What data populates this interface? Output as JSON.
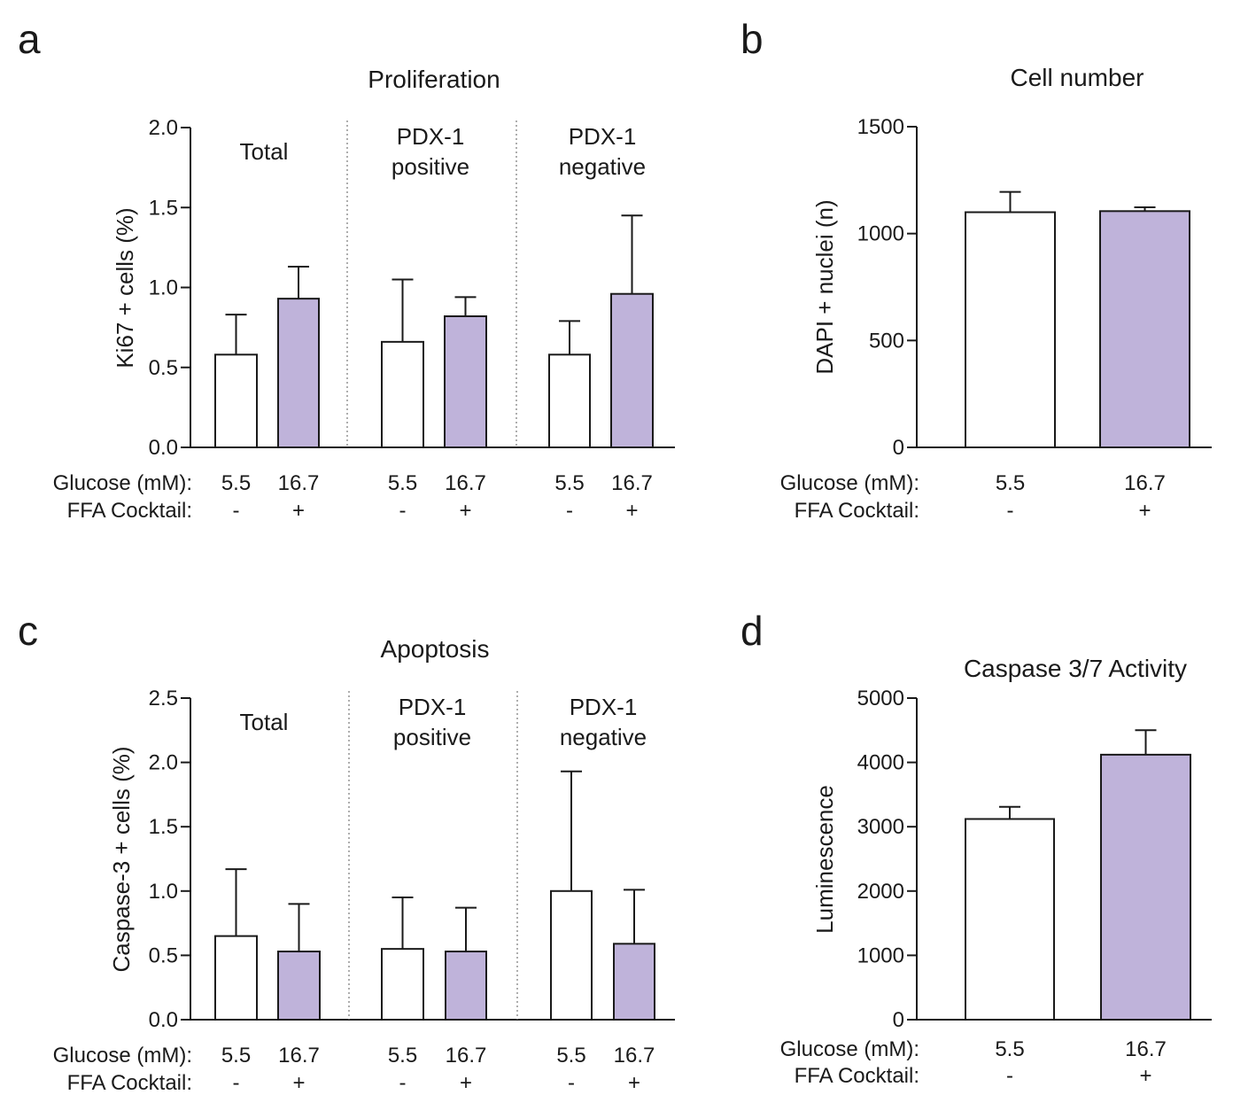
{
  "chart_data": [
    {
      "panel": "a",
      "type": "bar",
      "title": "Proliferation",
      "ylabel": "Ki67 + cells (%)",
      "ylim": [
        0,
        2.0
      ],
      "yticks": [
        "0.0",
        "0.5",
        "1.0",
        "1.5",
        "2.0"
      ],
      "row_labels": {
        "glucose": "Glucose (mM):",
        "ffa": "FFA Cocktail:"
      },
      "groups": [
        {
          "label_lines": [
            "Total"
          ],
          "bars": [
            {
              "glucose": "5.5",
              "ffa": "-",
              "value": 0.58,
              "error": 0.25,
              "fill": "#ffffff"
            },
            {
              "glucose": "16.7",
              "ffa": "+",
              "value": 0.93,
              "error": 0.2,
              "fill": "#bfb3da"
            }
          ]
        },
        {
          "label_lines": [
            "PDX-1",
            "positive"
          ],
          "bars": [
            {
              "glucose": "5.5",
              "ffa": "-",
              "value": 0.66,
              "error": 0.39,
              "fill": "#ffffff"
            },
            {
              "glucose": "16.7",
              "ffa": "+",
              "value": 0.82,
              "error": 0.12,
              "fill": "#bfb3da"
            }
          ]
        },
        {
          "label_lines": [
            "PDX-1",
            "negative"
          ],
          "bars": [
            {
              "glucose": "5.5",
              "ffa": "-",
              "value": 0.58,
              "error": 0.21,
              "fill": "#ffffff"
            },
            {
              "glucose": "16.7",
              "ffa": "+",
              "value": 0.96,
              "error": 0.49,
              "fill": "#bfb3da"
            }
          ]
        }
      ]
    },
    {
      "panel": "b",
      "type": "bar",
      "title": "Cell number",
      "ylabel": "DAPI + nuclei (n)",
      "ylim": [
        0,
        1500
      ],
      "yticks": [
        "0",
        "500",
        "1000",
        "1500"
      ],
      "row_labels": {
        "glucose": "Glucose (mM):",
        "ffa": "FFA Cocktail:"
      },
      "groups": [
        {
          "label_lines": [],
          "bars": [
            {
              "glucose": "5.5",
              "ffa": "-",
              "value": 1100,
              "error": 95,
              "fill": "#ffffff"
            },
            {
              "glucose": "16.7",
              "ffa": "+",
              "value": 1105,
              "error": 18,
              "fill": "#bfb3da"
            }
          ]
        }
      ]
    },
    {
      "panel": "c",
      "type": "bar",
      "title": "Apoptosis",
      "ylabel": "Caspase-3 + cells (%)",
      "ylim": [
        0,
        2.5
      ],
      "yticks": [
        "0.0",
        "0.5",
        "1.0",
        "1.5",
        "2.0",
        "2.5"
      ],
      "row_labels": {
        "glucose": "Glucose (mM):",
        "ffa": "FFA Cocktail:"
      },
      "groups": [
        {
          "label_lines": [
            "Total"
          ],
          "bars": [
            {
              "glucose": "5.5",
              "ffa": "-",
              "value": 0.65,
              "error": 0.52,
              "fill": "#ffffff"
            },
            {
              "glucose": "16.7",
              "ffa": "+",
              "value": 0.53,
              "error": 0.37,
              "fill": "#bfb3da"
            }
          ]
        },
        {
          "label_lines": [
            "PDX-1",
            "positive"
          ],
          "bars": [
            {
              "glucose": "5.5",
              "ffa": "-",
              "value": 0.55,
              "error": 0.4,
              "fill": "#ffffff"
            },
            {
              "glucose": "16.7",
              "ffa": "+",
              "value": 0.53,
              "error": 0.34,
              "fill": "#bfb3da"
            }
          ]
        },
        {
          "label_lines": [
            "PDX-1",
            "negative"
          ],
          "bars": [
            {
              "glucose": "5.5",
              "ffa": "-",
              "value": 1.0,
              "error": 0.93,
              "fill": "#ffffff"
            },
            {
              "glucose": "16.7",
              "ffa": "+",
              "value": 0.59,
              "error": 0.42,
              "fill": "#bfb3da"
            }
          ]
        }
      ]
    },
    {
      "panel": "d",
      "type": "bar",
      "title": "Caspase 3/7 Activity",
      "ylabel": "Luminescence",
      "ylim": [
        0,
        5000
      ],
      "yticks": [
        "0",
        "1000",
        "2000",
        "3000",
        "4000",
        "5000"
      ],
      "row_labels": {
        "glucose": "Glucose (mM):",
        "ffa": "FFA Cocktail:"
      },
      "groups": [
        {
          "label_lines": [],
          "bars": [
            {
              "glucose": "5.5",
              "ffa": "-",
              "value": 3120,
              "error": 190,
              "fill": "#ffffff"
            },
            {
              "glucose": "16.7",
              "ffa": "+",
              "value": 4120,
              "error": 380,
              "fill": "#bfb3da"
            }
          ]
        }
      ]
    }
  ]
}
